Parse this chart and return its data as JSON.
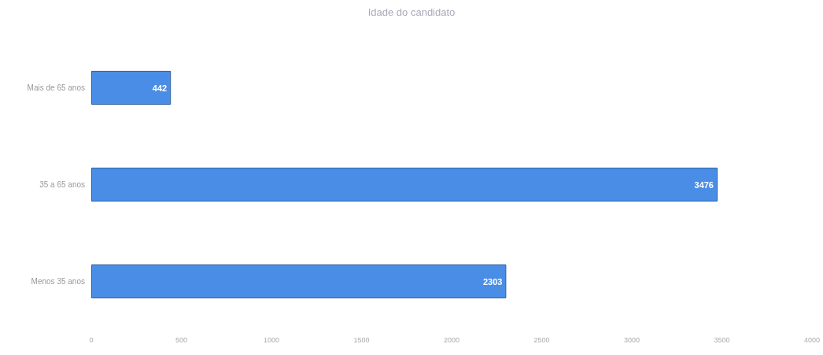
{
  "chart_data": {
    "type": "bar",
    "orientation": "horizontal",
    "title": "Idade do candidato",
    "categories": [
      "Mais de 65 anos",
      "35 a 65 anos",
      "Menos 35 anos"
    ],
    "values": [
      442,
      3476,
      2303
    ],
    "color": "#4a8de6",
    "data_labels": true,
    "grid": false,
    "xlim": [
      0,
      4000
    ],
    "xticks": [
      0,
      500,
      1000,
      1500,
      2000,
      2500,
      3000,
      3500,
      4000
    ]
  }
}
